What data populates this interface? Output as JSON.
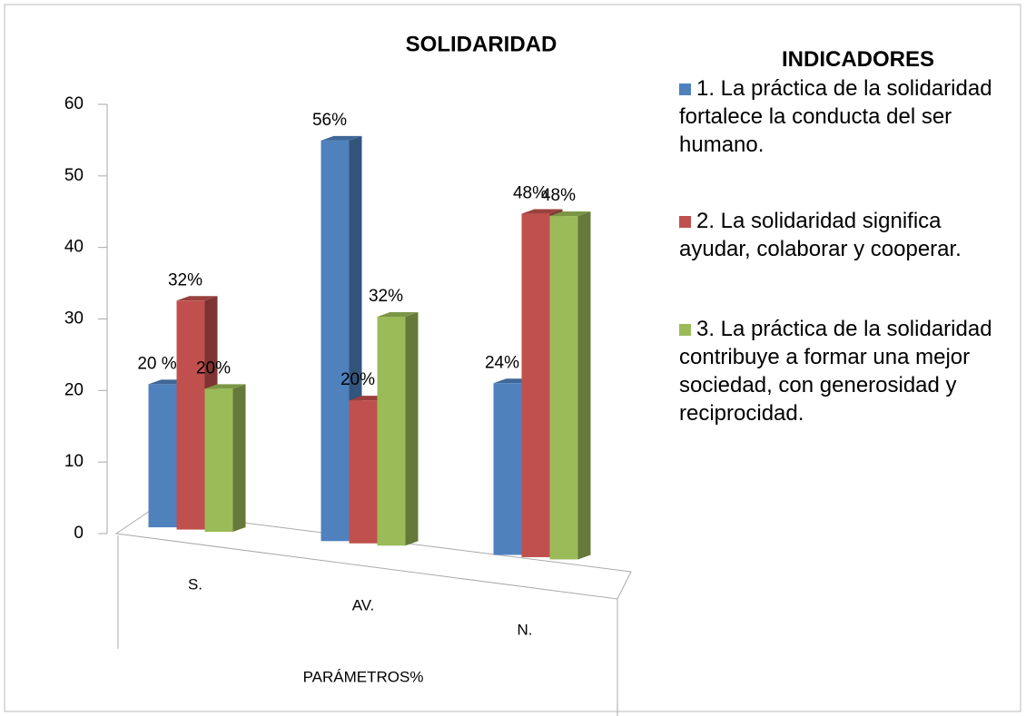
{
  "chart_data": {
    "type": "bar3d",
    "title": "SOLIDARIDAD",
    "x_label": "PARÁMETROS%",
    "legend_title": "INDICADORES",
    "categories": [
      "S.",
      "AV.",
      "N."
    ],
    "series": [
      {
        "name": "1. La práctica de la solidaridad fortalece la conducta del ser humano.",
        "color": "#4f81bd",
        "values": [
          20,
          56,
          24
        ],
        "value_labels": [
          "20 %",
          "56%",
          "24%"
        ]
      },
      {
        "name": "2. La solidaridad significa ayudar, colaborar y cooperar.",
        "color": "#c0504d",
        "values": [
          32,
          20,
          48
        ],
        "value_labels": [
          "32%",
          "20%",
          "48%"
        ]
      },
      {
        "name": "3. La práctica de la solidaridad contribuye a formar una mejor sociedad, con generosidad y reciprocidad.",
        "color": "#9bbb59",
        "values": [
          20,
          32,
          48
        ],
        "value_labels": [
          "20%",
          "32%",
          "48%"
        ]
      }
    ],
    "ylim": [
      0,
      60
    ],
    "yticks": [
      0,
      10,
      20,
      30,
      40,
      50,
      60
    ]
  }
}
